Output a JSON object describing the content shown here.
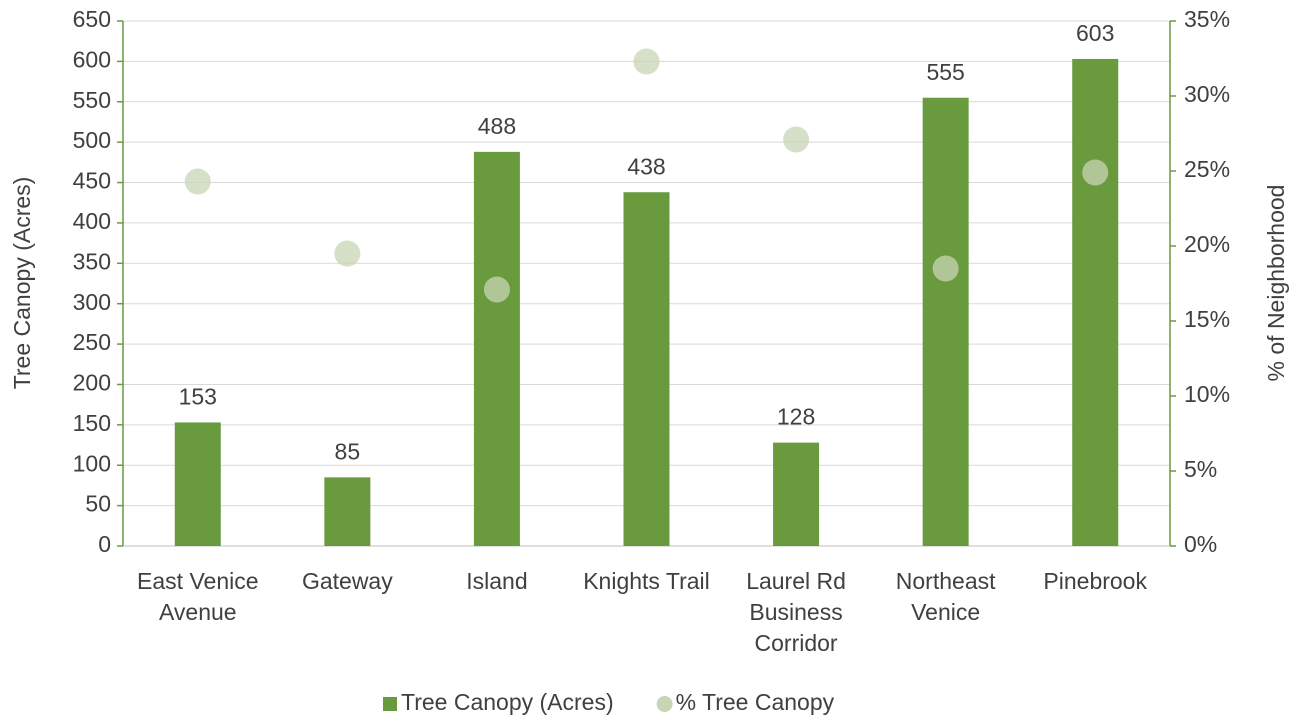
{
  "chart_data": {
    "type": "bar",
    "categories": [
      "East Venice Avenue",
      "Gateway",
      "Island",
      "Knights Trail",
      "Laurel Rd Business Corridor",
      "Northeast Venice",
      "Pinebrook"
    ],
    "series": [
      {
        "name": "Tree Canopy (Acres)",
        "type": "bar",
        "color": "#6a9a3e",
        "values": [
          153,
          85,
          488,
          438,
          128,
          555,
          603
        ]
      },
      {
        "name": "% Tree Canopy",
        "type": "scatter",
        "axis": "y2",
        "color": "#c8d4b4",
        "values": [
          24.3,
          19.5,
          17.1,
          32.3,
          27.1,
          18.5,
          24.9
        ]
      }
    ],
    "y_label": "Tree Canopy (Acres)",
    "y2_label": "% of Neighborhood",
    "ylim": [
      0,
      650
    ],
    "yticks": [
      0,
      50,
      100,
      150,
      200,
      250,
      300,
      350,
      400,
      450,
      500,
      550,
      600,
      650
    ],
    "y2lim": [
      0,
      35
    ],
    "y2ticks": [
      {
        "value": 0,
        "label": "0%"
      },
      {
        "value": 5,
        "label": "5%"
      },
      {
        "value": 10,
        "label": "10%"
      },
      {
        "value": 15,
        "label": "15%"
      },
      {
        "value": 20,
        "label": "20%"
      },
      {
        "value": 25,
        "label": "25%"
      },
      {
        "value": 30,
        "label": "30%"
      },
      {
        "value": 35,
        "label": "35%"
      }
    ],
    "grid": true,
    "legend": "bottom"
  }
}
